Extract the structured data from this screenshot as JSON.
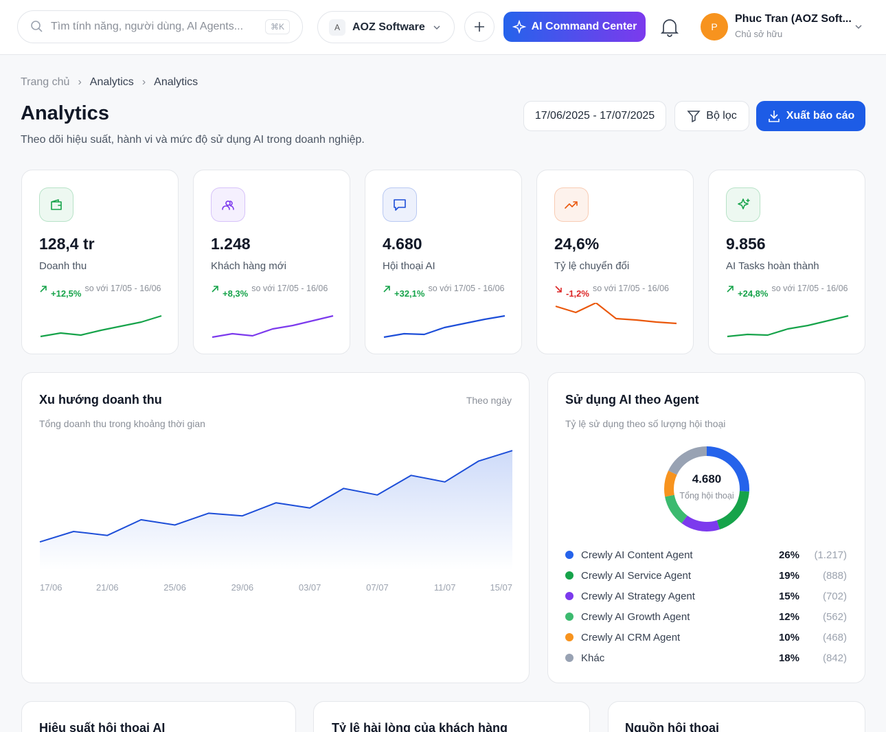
{
  "topbar": {
    "search_placeholder": "Tìm tính năng, người dùng, AI Agents...",
    "shortcut": "⌘K",
    "workspace_initial": "A",
    "workspace": "AOZ Software",
    "ai_button": "AI Command Center",
    "user_initial": "P",
    "user_name": "Phuc Tran (AOZ Soft...",
    "user_role": "Chủ sở hữu"
  },
  "breadcrumb": [
    "Trang chủ",
    "Analytics",
    "Analytics"
  ],
  "page": {
    "title": "Analytics",
    "subtitle": "Theo dõi hiệu suất, hành vi và mức độ sử dụng AI trong doanh nghiệp.",
    "date_range": "17/06/2025 - 17/07/2025",
    "filter": "Bộ lọc",
    "export": "Xuất báo cáo"
  },
  "kpis": [
    {
      "value": "128,4 tr",
      "label": "Doanh thu",
      "delta": "+12,5%",
      "compare": "so với 17/05 - 16/06",
      "color": "#16a34a",
      "delta_color": "#16a34a",
      "spark": [
        3,
        8,
        5,
        12,
        18,
        24,
        33
      ]
    },
    {
      "value": "1.248",
      "label": "Khách hàng mới",
      "delta": "+8,3%",
      "compare": "so với 17/05 - 16/06",
      "color": "#7c3aed",
      "delta_color": "#16a34a",
      "spark": [
        2,
        7,
        4,
        14,
        19,
        26,
        33
      ]
    },
    {
      "value": "4.680",
      "label": "Hội thoại AI",
      "delta": "+32,1%",
      "compare": "so với 17/05 - 16/06",
      "color": "#1d4ed8",
      "delta_color": "#16a34a",
      "spark": [
        2,
        7,
        6,
        16,
        22,
        28,
        33
      ]
    },
    {
      "value": "24,6%",
      "label": "Tỷ lệ chuyển đổi",
      "delta": "-1,2%",
      "compare": "so với 17/05 - 16/06",
      "color": "#ea580c",
      "delta_color": "#dc2626",
      "spark": [
        47,
        38,
        52,
        29,
        27,
        24,
        22
      ]
    },
    {
      "value": "9.856",
      "label": "AI Tasks hoàn thành",
      "delta": "+24,8%",
      "compare": "so với 17/05 - 16/06",
      "color": "#16a34a",
      "delta_color": "#16a34a",
      "spark": [
        3,
        6,
        5,
        14,
        19,
        26,
        33
      ]
    }
  ],
  "revenue_chart": {
    "type": "line",
    "title": "Xu hướng doanh thu",
    "subtitle": "Tổng doanh thu trong khoảng thời gian",
    "period": "Theo ngày",
    "x_labels": [
      "17/06",
      "21/06",
      "25/06",
      "29/06",
      "03/07",
      "07/07",
      "11/07",
      "15/07"
    ],
    "values": [
      22,
      30,
      27,
      39,
      35,
      44,
      42,
      52,
      48,
      63,
      58,
      73,
      68,
      84,
      92
    ],
    "color": "#1d4ed8"
  },
  "agent_chart": {
    "type": "donut",
    "title": "Sử dụng AI theo Agent",
    "subtitle": "Tỷ lệ sử dụng theo số lượng hội thoại",
    "total": "4.680",
    "total_label": "Tổng hội thoại",
    "series": [
      {
        "name": "Crewly AI Content Agent",
        "color": "#2563eb",
        "value": 26,
        "value_label": "26%",
        "count": 1217,
        "count_label": "(1.217)"
      },
      {
        "name": "Crewly AI Service Agent",
        "color": "#16a34a",
        "value": 19,
        "value_label": "19%",
        "count": 888,
        "count_label": "(888)"
      },
      {
        "name": "Crewly AI Strategy Agent",
        "color": "#7c3aed",
        "value": 15,
        "value_label": "15%",
        "count": 702,
        "count_label": "(702)"
      },
      {
        "name": "Crewly AI Growth Agent",
        "color": "#3cba6f",
        "value": 12,
        "value_label": "12%",
        "count": 562,
        "count_label": "(562)"
      },
      {
        "name": "Crewly AI CRM Agent",
        "color": "#f7931e",
        "value": 10,
        "value_label": "10%",
        "count": 468,
        "count_label": "(468)"
      },
      {
        "name": "Khác",
        "color": "#98a2b3",
        "value": 18,
        "value_label": "18%",
        "count": 842,
        "count_label": "(842)"
      }
    ]
  },
  "bottom_cards": [
    "Hiệu suất hội thoại AI",
    "Tỷ lệ hài lòng của khách hàng",
    "Nguồn hội thoại"
  ]
}
